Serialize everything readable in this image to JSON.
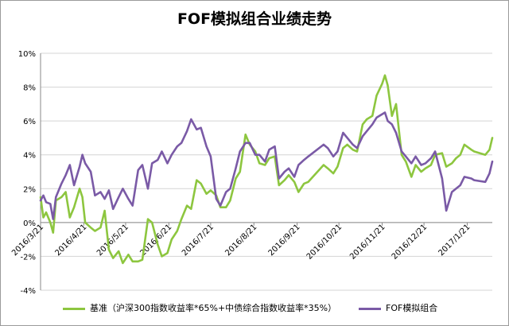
{
  "chart_data": {
    "type": "line",
    "title": "FOF模拟组合业绩走势",
    "xlabel": "",
    "ylabel": "",
    "ylim": [
      -4,
      10
    ],
    "yticks": [
      -4,
      -2,
      0,
      2,
      4,
      6,
      8,
      10
    ],
    "ytick_labels": [
      "-4%",
      "-2%",
      "0%",
      "2%",
      "4%",
      "6%",
      "8%",
      "10%"
    ],
    "x_range": [
      "2016-03-21",
      "2017-02-08"
    ],
    "xticks": [
      "2016-03-21",
      "2016-04-21",
      "2016-05-21",
      "2016-06-21",
      "2016-07-21",
      "2016-08-21",
      "2016-09-21",
      "2016-10-21",
      "2016-11-21",
      "2016-12-21",
      "2017-01-21"
    ],
    "xtick_labels": [
      "2016/3/21",
      "2016/4/21",
      "2016/5/21",
      "2016/6/21",
      "2016/7/21",
      "2016/8/21",
      "2016/9/21",
      "2016/10/21",
      "2016/11/21",
      "2016/12/21",
      "2017/1/21"
    ],
    "grid": true,
    "legend": "bottom",
    "series": [
      {
        "name": "基准（沪深300指数收益率*65%+中债综合指数收益率*35%）",
        "color": "#8dc63f",
        "points": [
          [
            "2016-03-21",
            1.5
          ],
          [
            "2016-03-23",
            0.3
          ],
          [
            "2016-03-25",
            0.6
          ],
          [
            "2016-03-28",
            0.0
          ],
          [
            "2016-03-30",
            -0.6
          ],
          [
            "2016-04-01",
            1.3
          ],
          [
            "2016-04-05",
            1.5
          ],
          [
            "2016-04-08",
            1.8
          ],
          [
            "2016-04-11",
            0.3
          ],
          [
            "2016-04-14",
            0.9
          ],
          [
            "2016-04-18",
            2.0
          ],
          [
            "2016-04-20",
            1.5
          ],
          [
            "2016-04-22",
            0.0
          ],
          [
            "2016-04-26",
            -0.3
          ],
          [
            "2016-04-29",
            -0.5
          ],
          [
            "2016-05-03",
            -0.3
          ],
          [
            "2016-05-06",
            0.7
          ],
          [
            "2016-05-09",
            -1.6
          ],
          [
            "2016-05-12",
            -2.1
          ],
          [
            "2016-05-16",
            -1.7
          ],
          [
            "2016-05-19",
            -2.4
          ],
          [
            "2016-05-23",
            -1.9
          ],
          [
            "2016-05-26",
            -2.3
          ],
          [
            "2016-05-30",
            -2.3
          ],
          [
            "2016-06-02",
            -2.2
          ],
          [
            "2016-06-06",
            0.2
          ],
          [
            "2016-06-09",
            0.0
          ],
          [
            "2016-06-13",
            -1.3
          ],
          [
            "2016-06-16",
            -2.0
          ],
          [
            "2016-06-20",
            -1.8
          ],
          [
            "2016-06-23",
            -1.0
          ],
          [
            "2016-06-27",
            -0.5
          ],
          [
            "2016-06-30",
            0.2
          ],
          [
            "2016-07-04",
            1.0
          ],
          [
            "2016-07-07",
            0.8
          ],
          [
            "2016-07-11",
            2.5
          ],
          [
            "2016-07-14",
            2.3
          ],
          [
            "2016-07-18",
            1.7
          ],
          [
            "2016-07-21",
            1.9
          ],
          [
            "2016-07-25",
            1.6
          ],
          [
            "2016-07-28",
            0.9
          ],
          [
            "2016-08-01",
            0.9
          ],
          [
            "2016-08-04",
            1.3
          ],
          [
            "2016-08-08",
            2.6
          ],
          [
            "2016-08-11",
            3.0
          ],
          [
            "2016-08-15",
            5.2
          ],
          [
            "2016-08-18",
            4.6
          ],
          [
            "2016-08-22",
            4.2
          ],
          [
            "2016-08-25",
            3.5
          ],
          [
            "2016-08-29",
            3.4
          ],
          [
            "2016-09-01",
            3.8
          ],
          [
            "2016-09-05",
            3.9
          ],
          [
            "2016-09-08",
            2.2
          ],
          [
            "2016-09-12",
            2.5
          ],
          [
            "2016-09-15",
            2.8
          ],
          [
            "2016-09-19",
            2.4
          ],
          [
            "2016-09-22",
            1.8
          ],
          [
            "2016-09-26",
            2.3
          ],
          [
            "2016-09-29",
            2.4
          ],
          [
            "2016-10-10",
            3.4
          ],
          [
            "2016-10-13",
            3.2
          ],
          [
            "2016-10-17",
            2.9
          ],
          [
            "2016-10-20",
            3.3
          ],
          [
            "2016-10-24",
            4.4
          ],
          [
            "2016-10-27",
            4.6
          ],
          [
            "2016-10-31",
            4.3
          ],
          [
            "2016-11-03",
            4.2
          ],
          [
            "2016-11-07",
            5.8
          ],
          [
            "2016-11-10",
            6.1
          ],
          [
            "2016-11-14",
            6.3
          ],
          [
            "2016-11-17",
            7.5
          ],
          [
            "2016-11-21",
            8.2
          ],
          [
            "2016-11-23",
            8.7
          ],
          [
            "2016-11-25",
            8.1
          ],
          [
            "2016-11-28",
            6.3
          ],
          [
            "2016-12-01",
            7.0
          ],
          [
            "2016-12-05",
            4.0
          ],
          [
            "2016-12-08",
            3.6
          ],
          [
            "2016-12-12",
            2.7
          ],
          [
            "2016-12-15",
            3.4
          ],
          [
            "2016-12-19",
            3.0
          ],
          [
            "2016-12-22",
            3.2
          ],
          [
            "2016-12-26",
            3.4
          ],
          [
            "2016-12-29",
            4.0
          ],
          [
            "2017-01-03",
            4.1
          ],
          [
            "2017-01-06",
            3.3
          ],
          [
            "2017-01-10",
            3.5
          ],
          [
            "2017-01-13",
            3.8
          ],
          [
            "2017-01-16",
            4.0
          ],
          [
            "2017-01-19",
            4.6
          ],
          [
            "2017-01-24",
            4.3
          ],
          [
            "2017-01-26",
            4.2
          ],
          [
            "2017-02-03",
            4.0
          ],
          [
            "2017-02-06",
            4.3
          ],
          [
            "2017-02-08",
            5.0
          ]
        ]
      },
      {
        "name": "FOF模拟组合",
        "color": "#7a5aa6",
        "points": [
          [
            "2016-03-21",
            1.3
          ],
          [
            "2016-03-23",
            1.6
          ],
          [
            "2016-03-25",
            1.2
          ],
          [
            "2016-03-28",
            1.1
          ],
          [
            "2016-03-30",
            0.2
          ],
          [
            "2016-04-01",
            1.5
          ],
          [
            "2016-04-05",
            2.3
          ],
          [
            "2016-04-08",
            2.8
          ],
          [
            "2016-04-11",
            3.4
          ],
          [
            "2016-04-14",
            2.2
          ],
          [
            "2016-04-18",
            3.3
          ],
          [
            "2016-04-20",
            4.0
          ],
          [
            "2016-04-22",
            3.5
          ],
          [
            "2016-04-26",
            3.0
          ],
          [
            "2016-04-29",
            1.6
          ],
          [
            "2016-05-03",
            1.8
          ],
          [
            "2016-05-06",
            1.4
          ],
          [
            "2016-05-09",
            1.9
          ],
          [
            "2016-05-12",
            0.8
          ],
          [
            "2016-05-16",
            1.5
          ],
          [
            "2016-05-19",
            2.0
          ],
          [
            "2016-05-23",
            1.4
          ],
          [
            "2016-05-26",
            1.0
          ],
          [
            "2016-05-30",
            3.1
          ],
          [
            "2016-06-02",
            3.4
          ],
          [
            "2016-06-06",
            2.0
          ],
          [
            "2016-06-09",
            3.5
          ],
          [
            "2016-06-13",
            3.7
          ],
          [
            "2016-06-16",
            4.2
          ],
          [
            "2016-06-20",
            3.5
          ],
          [
            "2016-06-23",
            4.0
          ],
          [
            "2016-06-27",
            4.5
          ],
          [
            "2016-06-30",
            4.7
          ],
          [
            "2016-07-04",
            5.4
          ],
          [
            "2016-07-07",
            6.1
          ],
          [
            "2016-07-11",
            5.5
          ],
          [
            "2016-07-14",
            5.6
          ],
          [
            "2016-07-18",
            4.5
          ],
          [
            "2016-07-21",
            3.9
          ],
          [
            "2016-07-25",
            1.4
          ],
          [
            "2016-07-28",
            1.0
          ],
          [
            "2016-08-01",
            1.8
          ],
          [
            "2016-08-04",
            2.0
          ],
          [
            "2016-08-08",
            3.2
          ],
          [
            "2016-08-11",
            4.2
          ],
          [
            "2016-08-15",
            4.7
          ],
          [
            "2016-08-18",
            4.7
          ],
          [
            "2016-08-22",
            4.0
          ],
          [
            "2016-08-25",
            4.0
          ],
          [
            "2016-08-29",
            3.6
          ],
          [
            "2016-09-01",
            4.3
          ],
          [
            "2016-09-05",
            4.5
          ],
          [
            "2016-09-08",
            2.6
          ],
          [
            "2016-09-12",
            3.0
          ],
          [
            "2016-09-15",
            3.2
          ],
          [
            "2016-09-19",
            2.7
          ],
          [
            "2016-09-22",
            3.4
          ],
          [
            "2016-09-26",
            3.7
          ],
          [
            "2016-09-29",
            3.9
          ],
          [
            "2016-10-10",
            4.6
          ],
          [
            "2016-10-13",
            4.4
          ],
          [
            "2016-10-17",
            3.9
          ],
          [
            "2016-10-20",
            4.2
          ],
          [
            "2016-10-24",
            5.3
          ],
          [
            "2016-10-27",
            5.0
          ],
          [
            "2016-10-31",
            4.6
          ],
          [
            "2016-11-03",
            4.4
          ],
          [
            "2016-11-07",
            5.1
          ],
          [
            "2016-11-10",
            5.4
          ],
          [
            "2016-11-14",
            5.8
          ],
          [
            "2016-11-17",
            6.2
          ],
          [
            "2016-11-21",
            6.4
          ],
          [
            "2016-11-23",
            6.5
          ],
          [
            "2016-11-25",
            6.0
          ],
          [
            "2016-11-28",
            5.8
          ],
          [
            "2016-12-01",
            5.3
          ],
          [
            "2016-12-05",
            4.2
          ],
          [
            "2016-12-08",
            3.9
          ],
          [
            "2016-12-12",
            3.5
          ],
          [
            "2016-12-15",
            3.9
          ],
          [
            "2016-12-19",
            3.4
          ],
          [
            "2016-12-22",
            3.5
          ],
          [
            "2016-12-26",
            3.8
          ],
          [
            "2016-12-29",
            4.2
          ],
          [
            "2017-01-03",
            2.6
          ],
          [
            "2017-01-06",
            0.7
          ],
          [
            "2017-01-10",
            1.8
          ],
          [
            "2017-01-13",
            2.0
          ],
          [
            "2017-01-16",
            2.2
          ],
          [
            "2017-01-19",
            2.7
          ],
          [
            "2017-01-24",
            2.6
          ],
          [
            "2017-01-26",
            2.5
          ],
          [
            "2017-02-03",
            2.4
          ],
          [
            "2017-02-06",
            2.9
          ],
          [
            "2017-02-08",
            3.6
          ]
        ]
      }
    ]
  }
}
